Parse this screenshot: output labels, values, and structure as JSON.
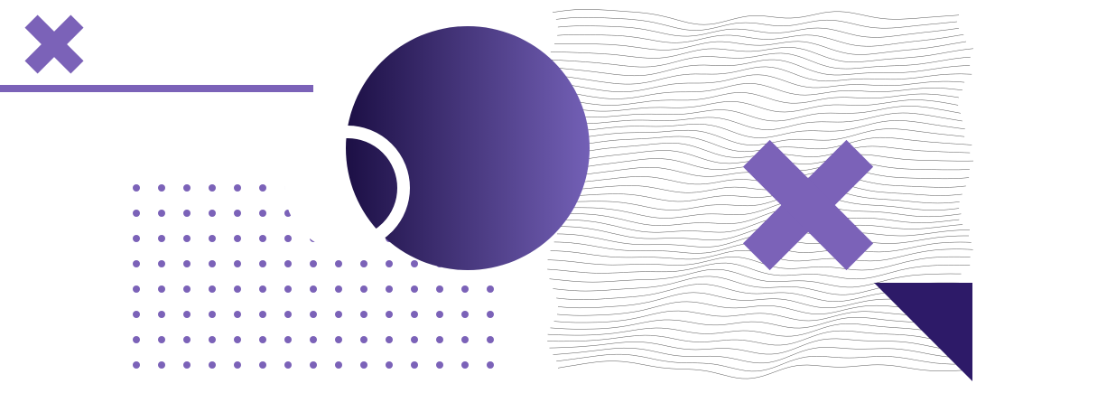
{
  "colors": {
    "accent": "#7b62b8",
    "gradient_start": "#1c0f45",
    "gradient_end": "#7360b6",
    "triangle": "#2d1a68",
    "wave_line": "#555555",
    "background": "#ffffff"
  },
  "icons": [
    "x-mark-small",
    "x-mark-large"
  ]
}
